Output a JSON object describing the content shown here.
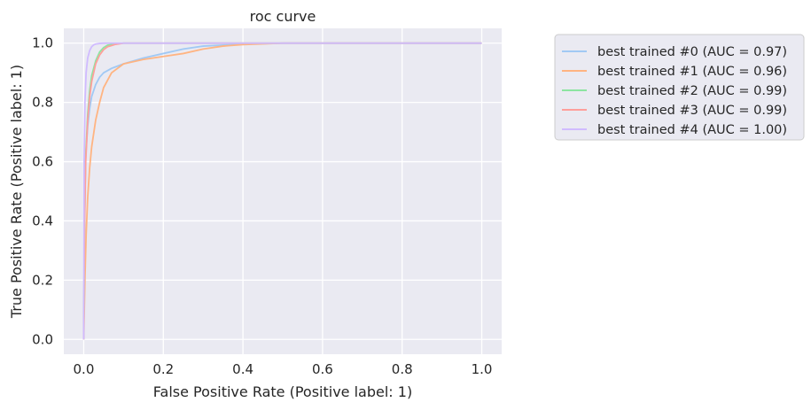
{
  "chart_data": {
    "type": "line",
    "title": "roc curve",
    "xlabel": "False Positive Rate (Positive label: 1)",
    "ylabel": "True Positive Rate (Positive label: 1)",
    "xlim": [
      -0.05,
      1.05
    ],
    "ylim": [
      -0.05,
      1.05
    ],
    "xticks": [
      0.0,
      0.2,
      0.4,
      0.6,
      0.8,
      1.0
    ],
    "xtick_labels": [
      "0.0",
      "0.2",
      "0.4",
      "0.6",
      "0.8",
      "1.0"
    ],
    "yticks": [
      0.0,
      0.2,
      0.4,
      0.6,
      0.8,
      1.0
    ],
    "ytick_labels": [
      "0.0",
      "0.2",
      "0.4",
      "0.6",
      "0.8",
      "1.0"
    ],
    "grid": true,
    "background": "#eaeaf2",
    "legend_position": "outside-right-top",
    "series": [
      {
        "name": "best trained #0 (AUC = 0.97)",
        "color": "#a1c9f4",
        "x": [
          0,
          0.002,
          0.005,
          0.01,
          0.015,
          0.02,
          0.03,
          0.04,
          0.05,
          0.07,
          0.1,
          0.15,
          0.2,
          0.25,
          0.3,
          0.4,
          0.5,
          0.7,
          1.0
        ],
        "y": [
          0,
          0.45,
          0.62,
          0.72,
          0.78,
          0.82,
          0.86,
          0.885,
          0.9,
          0.915,
          0.93,
          0.95,
          0.965,
          0.98,
          0.99,
          0.997,
          1.0,
          1.0,
          1.0
        ]
      },
      {
        "name": "best trained #1 (AUC = 0.96)",
        "color": "#ffb482",
        "x": [
          0,
          0.003,
          0.006,
          0.01,
          0.015,
          0.02,
          0.03,
          0.04,
          0.05,
          0.07,
          0.1,
          0.15,
          0.2,
          0.25,
          0.3,
          0.35,
          0.4,
          0.5,
          0.7,
          1.0
        ],
        "y": [
          0,
          0.2,
          0.35,
          0.48,
          0.58,
          0.65,
          0.74,
          0.8,
          0.85,
          0.9,
          0.93,
          0.945,
          0.955,
          0.965,
          0.98,
          0.99,
          0.995,
          1.0,
          1.0,
          1.0
        ]
      },
      {
        "name": "best trained #2 (AUC = 0.99)",
        "color": "#8de5a1",
        "x": [
          0,
          0.002,
          0.005,
          0.01,
          0.015,
          0.02,
          0.03,
          0.04,
          0.05,
          0.06,
          0.08,
          0.1,
          0.15,
          1.0
        ],
        "y": [
          0,
          0.4,
          0.62,
          0.76,
          0.84,
          0.89,
          0.94,
          0.97,
          0.985,
          0.993,
          0.998,
          1.0,
          1.0,
          1.0
        ]
      },
      {
        "name": "best trained #3 (AUC = 0.99)",
        "color": "#ff9f9b",
        "x": [
          0,
          0.002,
          0.005,
          0.01,
          0.015,
          0.02,
          0.03,
          0.04,
          0.05,
          0.06,
          0.08,
          0.1,
          0.15,
          1.0
        ],
        "y": [
          0,
          0.38,
          0.6,
          0.74,
          0.82,
          0.87,
          0.93,
          0.96,
          0.978,
          0.988,
          0.996,
          1.0,
          1.0,
          1.0
        ]
      },
      {
        "name": "best trained #4 (AUC = 1.00)",
        "color": "#d0bbff",
        "x": [
          0,
          0.001,
          0.003,
          0.006,
          0.01,
          0.015,
          0.02,
          0.025,
          0.03,
          0.04,
          0.05,
          0.07,
          1.0
        ],
        "y": [
          0,
          0.6,
          0.8,
          0.9,
          0.95,
          0.975,
          0.988,
          0.994,
          0.997,
          0.999,
          1.0,
          1.0,
          1.0
        ]
      }
    ]
  }
}
